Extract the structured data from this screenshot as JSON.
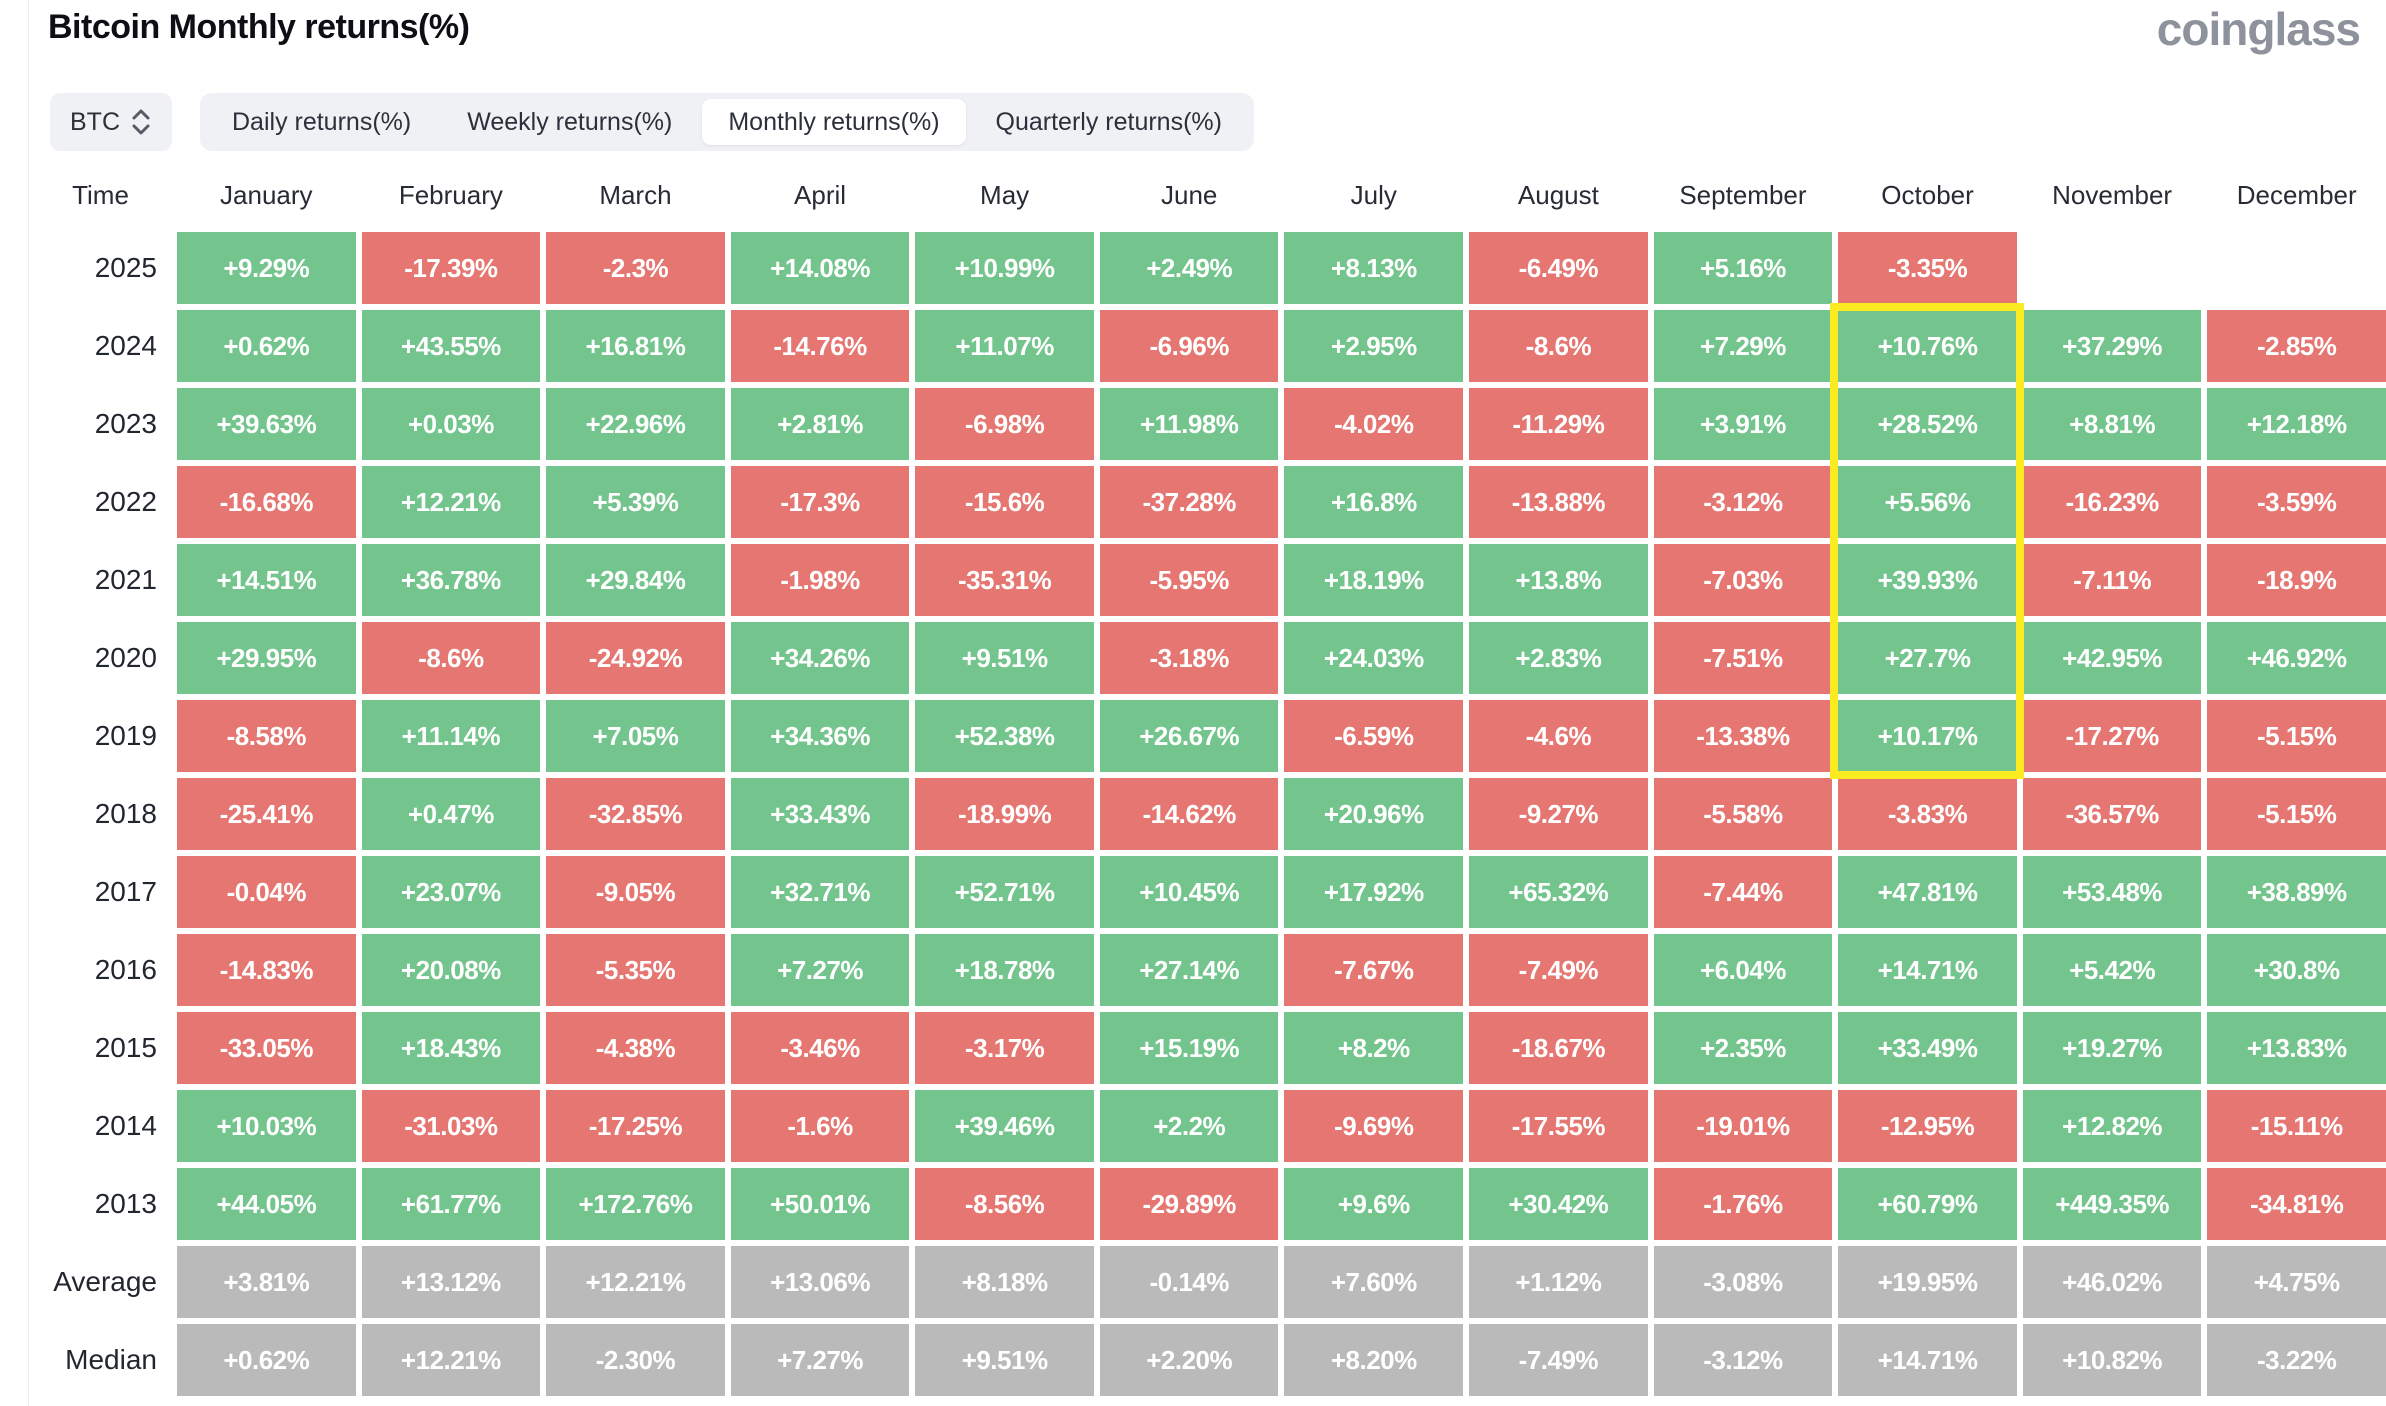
{
  "header": {
    "title": "Bitcoin Monthly returns(%)",
    "logo": "coinglass"
  },
  "controls": {
    "symbol_selector": {
      "label": "BTC",
      "icon": "updown-chevron-icon"
    },
    "tabs": [
      {
        "label": "Daily returns(%)",
        "active": false
      },
      {
        "label": "Weekly returns(%)",
        "active": false
      },
      {
        "label": "Monthly returns(%)",
        "active": true
      },
      {
        "label": "Quarterly returns(%)",
        "active": false
      }
    ]
  },
  "colors": {
    "positive": "#73c58d",
    "negative": "#e57671",
    "summary": "#bababa",
    "highlight": "#fdeb21",
    "cell_text": "#ffffff"
  },
  "chart_data": {
    "type": "heatmap",
    "title": "Bitcoin Monthly returns(%)",
    "columns": [
      "Time",
      "January",
      "February",
      "March",
      "April",
      "May",
      "June",
      "July",
      "August",
      "September",
      "October",
      "November",
      "December"
    ],
    "rows": [
      {
        "label": "2025",
        "summary": false,
        "values": [
          "+9.29%",
          "-17.39%",
          "-2.3%",
          "+14.08%",
          "+10.99%",
          "+2.49%",
          "+8.13%",
          "-6.49%",
          "+5.16%",
          "-3.35%",
          null,
          null
        ]
      },
      {
        "label": "2024",
        "summary": false,
        "values": [
          "+0.62%",
          "+43.55%",
          "+16.81%",
          "-14.76%",
          "+11.07%",
          "-6.96%",
          "+2.95%",
          "-8.6%",
          "+7.29%",
          "+10.76%",
          "+37.29%",
          "-2.85%"
        ]
      },
      {
        "label": "2023",
        "summary": false,
        "values": [
          "+39.63%",
          "+0.03%",
          "+22.96%",
          "+2.81%",
          "-6.98%",
          "+11.98%",
          "-4.02%",
          "-11.29%",
          "+3.91%",
          "+28.52%",
          "+8.81%",
          "+12.18%"
        ]
      },
      {
        "label": "2022",
        "summary": false,
        "values": [
          "-16.68%",
          "+12.21%",
          "+5.39%",
          "-17.3%",
          "-15.6%",
          "-37.28%",
          "+16.8%",
          "-13.88%",
          "-3.12%",
          "+5.56%",
          "-16.23%",
          "-3.59%"
        ]
      },
      {
        "label": "2021",
        "summary": false,
        "values": [
          "+14.51%",
          "+36.78%",
          "+29.84%",
          "-1.98%",
          "-35.31%",
          "-5.95%",
          "+18.19%",
          "+13.8%",
          "-7.03%",
          "+39.93%",
          "-7.11%",
          "-18.9%"
        ]
      },
      {
        "label": "2020",
        "summary": false,
        "values": [
          "+29.95%",
          "-8.6%",
          "-24.92%",
          "+34.26%",
          "+9.51%",
          "-3.18%",
          "+24.03%",
          "+2.83%",
          "-7.51%",
          "+27.7%",
          "+42.95%",
          "+46.92%"
        ]
      },
      {
        "label": "2019",
        "summary": false,
        "values": [
          "-8.58%",
          "+11.14%",
          "+7.05%",
          "+34.36%",
          "+52.38%",
          "+26.67%",
          "-6.59%",
          "-4.6%",
          "-13.38%",
          "+10.17%",
          "-17.27%",
          "-5.15%"
        ]
      },
      {
        "label": "2018",
        "summary": false,
        "values": [
          "-25.41%",
          "+0.47%",
          "-32.85%",
          "+33.43%",
          "-18.99%",
          "-14.62%",
          "+20.96%",
          "-9.27%",
          "-5.58%",
          "-3.83%",
          "-36.57%",
          "-5.15%"
        ]
      },
      {
        "label": "2017",
        "summary": false,
        "values": [
          "-0.04%",
          "+23.07%",
          "-9.05%",
          "+32.71%",
          "+52.71%",
          "+10.45%",
          "+17.92%",
          "+65.32%",
          "-7.44%",
          "+47.81%",
          "+53.48%",
          "+38.89%"
        ]
      },
      {
        "label": "2016",
        "summary": false,
        "values": [
          "-14.83%",
          "+20.08%",
          "-5.35%",
          "+7.27%",
          "+18.78%",
          "+27.14%",
          "-7.67%",
          "-7.49%",
          "+6.04%",
          "+14.71%",
          "+5.42%",
          "+30.8%"
        ]
      },
      {
        "label": "2015",
        "summary": false,
        "values": [
          "-33.05%",
          "+18.43%",
          "-4.38%",
          "-3.46%",
          "-3.17%",
          "+15.19%",
          "+8.2%",
          "-18.67%",
          "+2.35%",
          "+33.49%",
          "+19.27%",
          "+13.83%"
        ]
      },
      {
        "label": "2014",
        "summary": false,
        "values": [
          "+10.03%",
          "-31.03%",
          "-17.25%",
          "-1.6%",
          "+39.46%",
          "+2.2%",
          "-9.69%",
          "-17.55%",
          "-19.01%",
          "-12.95%",
          "+12.82%",
          "-15.11%"
        ]
      },
      {
        "label": "2013",
        "summary": false,
        "values": [
          "+44.05%",
          "+61.77%",
          "+172.76%",
          "+50.01%",
          "-8.56%",
          "-29.89%",
          "+9.6%",
          "+30.42%",
          "-1.76%",
          "+60.79%",
          "+449.35%",
          "-34.81%"
        ]
      },
      {
        "label": "Average",
        "summary": true,
        "values": [
          "+3.81%",
          "+13.12%",
          "+12.21%",
          "+13.06%",
          "+8.18%",
          "-0.14%",
          "+7.60%",
          "+1.12%",
          "-3.08%",
          "+19.95%",
          "+46.02%",
          "+4.75%"
        ]
      },
      {
        "label": "Median",
        "summary": true,
        "values": [
          "+0.62%",
          "+12.21%",
          "-2.30%",
          "+7.27%",
          "+9.51%",
          "+2.20%",
          "+8.20%",
          "-7.49%",
          "-3.12%",
          "+14.71%",
          "+10.82%",
          "-3.22%"
        ]
      }
    ],
    "highlight": {
      "column": "October",
      "from_row": "2024",
      "to_row": "2019"
    },
    "legend": "green = positive monthly return, red = negative monthly return, gray = Average/Median summary rows"
  }
}
